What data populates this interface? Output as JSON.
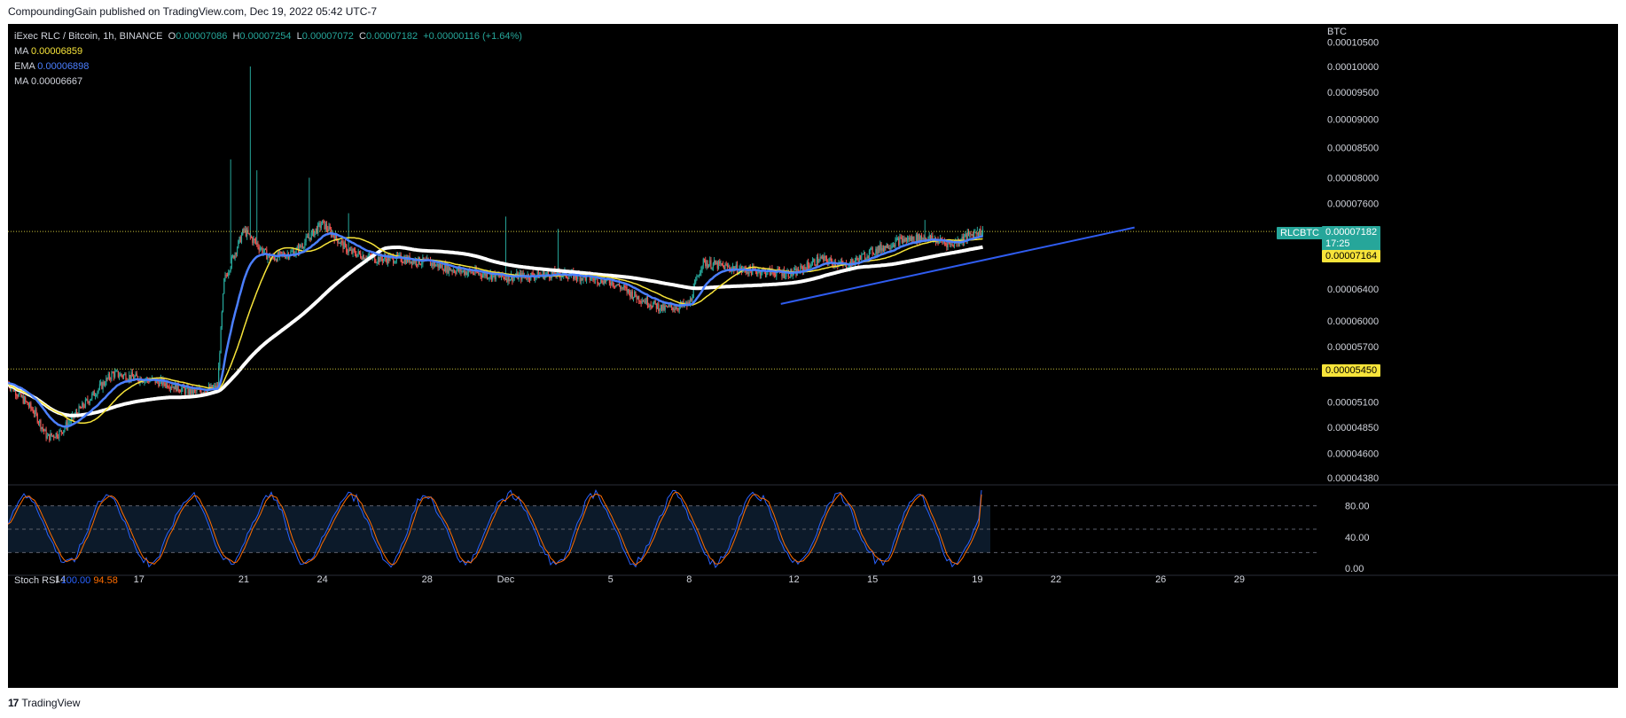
{
  "header": {
    "publisher": "CompoundingGain published on TradingView.com, Dec 19, 2022 05:42 UTC-7"
  },
  "legend": {
    "symbol": "iExec RLC / Bitcoin, 1h, BINANCE",
    "o_label": "O",
    "o": "0.00007086",
    "h_label": "H",
    "h": "0.00007254",
    "l_label": "L",
    "l": "0.00007072",
    "c_label": "C",
    "c": "0.00007182",
    "change": "+0.00000116 (+1.64%)",
    "ma1_label": "MA",
    "ma1": "0.00006859",
    "ema_label": "EMA",
    "ema": "0.00006898",
    "ma2_label": "MA",
    "ma2": "0.00006667"
  },
  "rsi_legend": {
    "label": "Stoch RSI",
    "k": "100.00",
    "d": "94.58"
  },
  "price_tags": {
    "symbol_tag": "RLCBTC",
    "last_price": "0.00007182",
    "countdown": "17:25",
    "ma_price": "0.00007164",
    "support_price": "0.00005450"
  },
  "footer": {
    "logo": "17",
    "brand": "TradingView"
  },
  "colors": {
    "background": "#000000",
    "up": "#26a69a",
    "down": "#ef5350",
    "ma_yellow": "#f7e43a",
    "ema_blue": "#4b7fff",
    "ma_white": "#ffffff",
    "trendline": "#2f5cf0",
    "level_line": "#c9c23a",
    "stoch_k": "#2962ff",
    "stoch_d": "#ff6d00"
  },
  "chart_data": [
    {
      "type": "candlestick",
      "title": "iExec RLC / Bitcoin, 1h, BINANCE",
      "y_axis_unit": "BTC",
      "y_ticks": [
        "0.00010500",
        "0.00010000",
        "0.00009500",
        "0.00009000",
        "0.00008500",
        "0.00008000",
        "0.00007600",
        "0.00006400",
        "0.00006000",
        "0.00005700",
        "0.00005100",
        "0.00004850",
        "0.00004600",
        "0.00004380"
      ],
      "x_ticks": [
        "14",
        "17",
        "21",
        "24",
        "28",
        "Dec",
        "5",
        "8",
        "12",
        "15",
        "19",
        "22",
        "26",
        "29"
      ],
      "x_tick_dates": [
        "2022-11-14",
        "2022-11-17",
        "2022-11-21",
        "2022-11-24",
        "2022-11-28",
        "2022-12-01",
        "2022-12-05",
        "2022-12-08",
        "2022-12-12",
        "2022-12-15",
        "2022-12-19",
        "2022-12-22",
        "2022-12-26",
        "2022-12-29"
      ],
      "ylim": [
        4.35e-05,
        0.000107
      ],
      "log_scale": true,
      "price_path": [
        [
          "2022-11-12",
          5.3e-05
        ],
        [
          "2022-11-13",
          5e-05
        ],
        [
          "2022-11-13 12:00",
          4.75e-05
        ],
        [
          "2022-11-14",
          4.8e-05
        ],
        [
          "2022-11-15",
          5.1e-05
        ],
        [
          "2022-11-16",
          5.4e-05
        ],
        [
          "2022-11-17",
          5.35e-05
        ],
        [
          "2022-11-18",
          5.3e-05
        ],
        [
          "2022-11-19",
          5.2e-05
        ],
        [
          "2022-11-20",
          5.25e-05
        ],
        [
          "2022-11-20 06:00",
          6.5e-05
        ],
        [
          "2022-11-21",
          7.2e-05
        ],
        [
          "2022-11-21 12:00",
          7e-05
        ],
        [
          "2022-11-22",
          6.8e-05
        ],
        [
          "2022-11-23",
          6.9e-05
        ],
        [
          "2022-11-24",
          7.3e-05
        ],
        [
          "2022-11-25",
          6.9e-05
        ],
        [
          "2022-11-26",
          6.8e-05
        ],
        [
          "2022-11-27",
          6.8e-05
        ],
        [
          "2022-11-28",
          6.75e-05
        ],
        [
          "2022-11-29",
          6.65e-05
        ],
        [
          "2022-11-30",
          6.6e-05
        ],
        [
          "2022-12-01",
          6.55e-05
        ],
        [
          "2022-12-03",
          6.6e-05
        ],
        [
          "2022-12-05",
          6.5e-05
        ],
        [
          "2022-12-06",
          6.3e-05
        ],
        [
          "2022-12-07",
          6.15e-05
        ],
        [
          "2022-12-08",
          6.2e-05
        ],
        [
          "2022-12-08 12:00",
          6.75e-05
        ],
        [
          "2022-12-10",
          6.65e-05
        ],
        [
          "2022-12-12",
          6.6e-05
        ],
        [
          "2022-12-13",
          6.8e-05
        ],
        [
          "2022-12-14",
          6.7e-05
        ],
        [
          "2022-12-15",
          6.9e-05
        ],
        [
          "2022-12-16",
          7.05e-05
        ],
        [
          "2022-12-17",
          7.1e-05
        ],
        [
          "2022-12-18",
          7e-05
        ],
        [
          "2022-12-19",
          7.18e-05
        ]
      ],
      "spikes": [
        [
          "2022-11-20 12:00",
          8.3e-05
        ],
        [
          "2022-11-21 06:00",
          0.0001
        ],
        [
          "2022-11-21 12:00",
          8.12e-05
        ],
        [
          "2022-11-23 12:00",
          8e-05
        ],
        [
          "2022-11-25",
          7.45e-05
        ],
        [
          "2022-12-01",
          7.4e-05
        ],
        [
          "2022-12-03",
          7.22e-05
        ],
        [
          "2022-12-17",
          7.35e-05
        ],
        [
          "2022-12-19",
          7.25e-05
        ]
      ],
      "horizontal_levels": [
        {
          "value": 7.182e-05,
          "style": "dotted"
        },
        {
          "value": 5.45e-05,
          "style": "dotted"
        }
      ],
      "trendline": {
        "from": [
          "2022-12-11 12:00",
          6.21e-05
        ],
        "to": [
          "2022-12-25",
          7.24e-05
        ]
      }
    },
    {
      "type": "line",
      "title": "Stoch RSI",
      "y_ticks": [
        "80.00",
        "40.00",
        "0.00"
      ],
      "bands": [
        80,
        20
      ],
      "ylim": [
        0,
        100
      ],
      "series": [
        {
          "name": "K",
          "last": 100.0
        },
        {
          "name": "D",
          "last": 94.58
        }
      ]
    }
  ]
}
